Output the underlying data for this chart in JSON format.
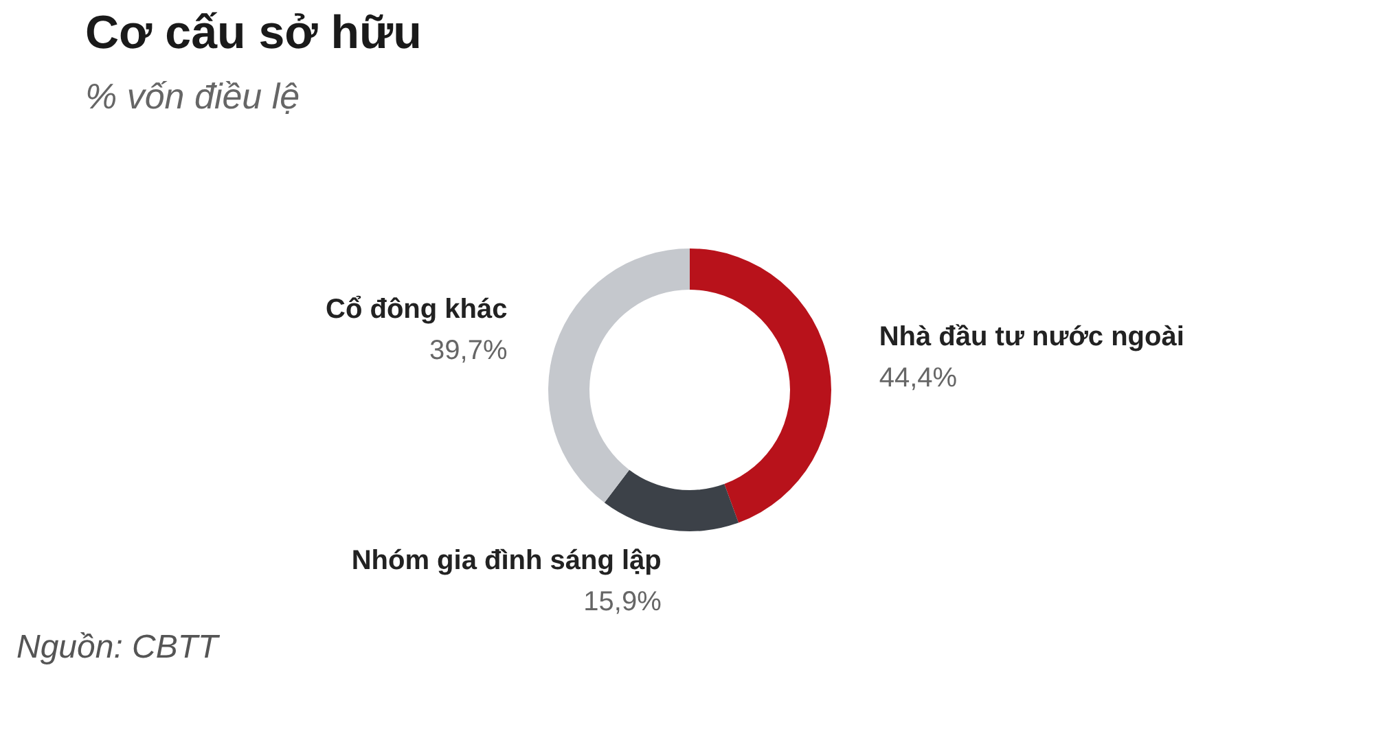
{
  "chart_data": {
    "type": "donut",
    "title": "Cơ cấu sở hữu",
    "subtitle": "% vốn điều lệ",
    "categories": [
      "Nhà đầu tư nước ngoài",
      "Nhóm gia đình sáng lập",
      "Cổ đông khác"
    ],
    "values": [
      44.4,
      15.9,
      39.7
    ],
    "colors": [
      "#b8121b",
      "#3c4148",
      "#c5c8cd"
    ],
    "value_labels": [
      "44,4%",
      "15,9%",
      "39,7%"
    ],
    "legend": false,
    "annotations": [
      "Nguồn: CBTT"
    ]
  }
}
